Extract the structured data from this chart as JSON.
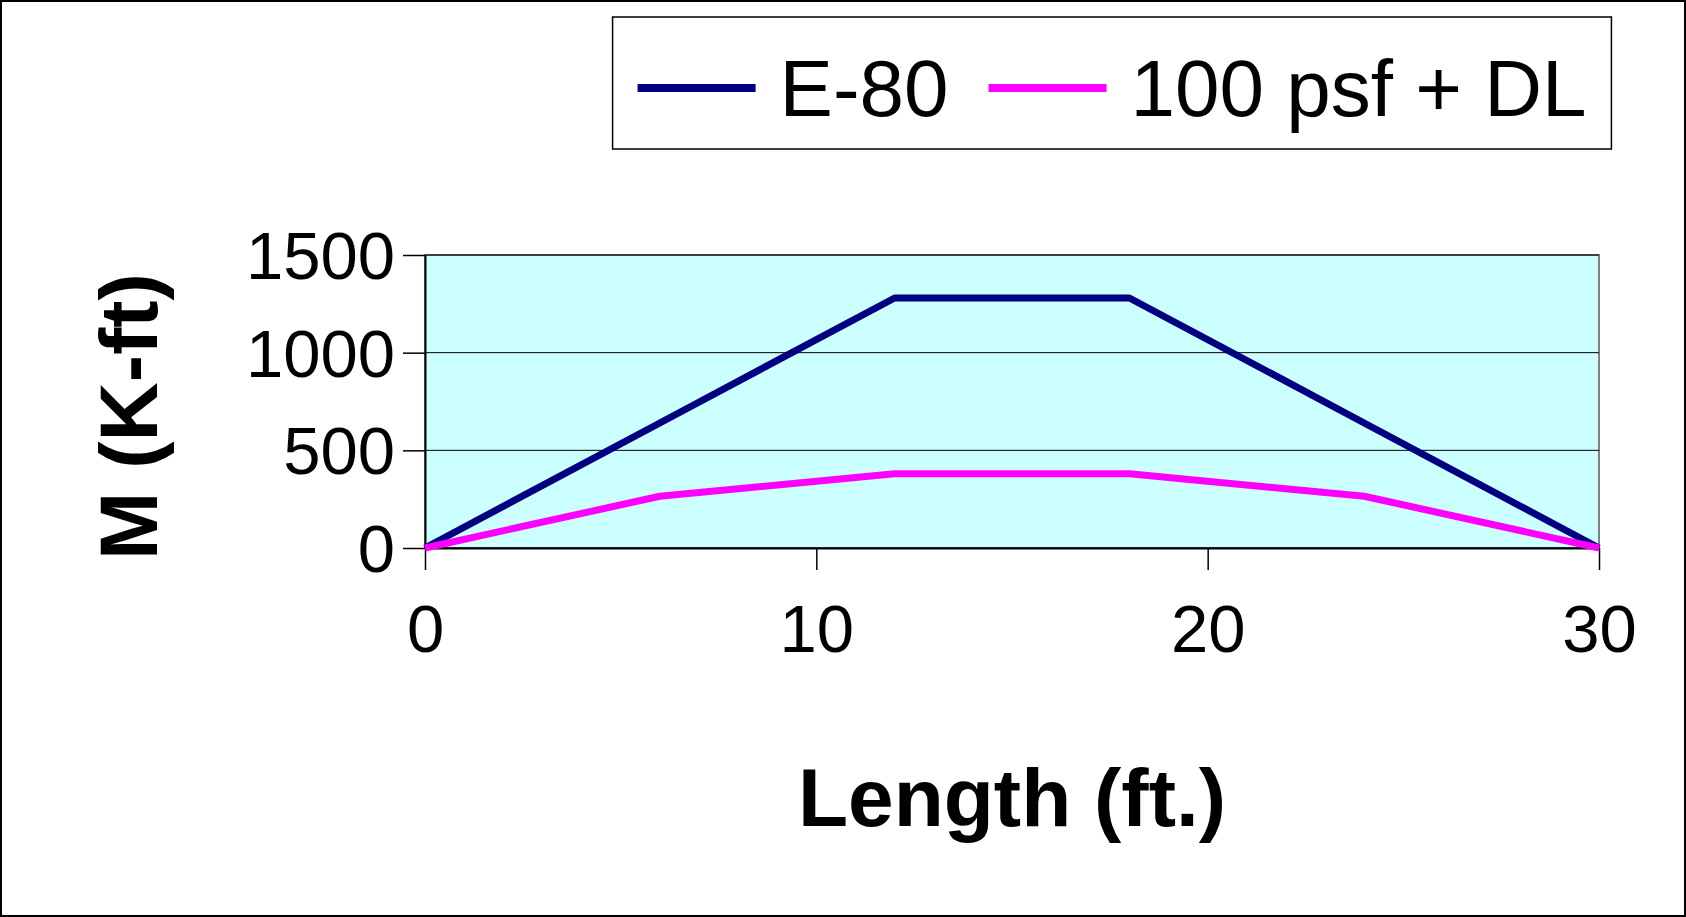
{
  "chart_data": {
    "type": "line",
    "xlabel": "Length (ft.)",
    "ylabel": "M (K-ft)",
    "xlim": [
      0,
      30
    ],
    "xticks": [
      0,
      10,
      20,
      30
    ],
    "ylim": [
      0,
      1500
    ],
    "yticks": [
      0,
      500,
      1000,
      1500
    ],
    "grid": "y",
    "legend": "top",
    "marker": "none",
    "line_style": "solid",
    "series": [
      {
        "name": "E-80",
        "color": "#000080",
        "x": [
          0,
          6,
          12,
          18,
          24,
          30
        ],
        "values": [
          0,
          640,
          1280,
          1280,
          640,
          0
        ]
      },
      {
        "name": "100 psf + DL",
        "color": "#ff00ff",
        "x": [
          0,
          6,
          12,
          18,
          24,
          30
        ],
        "values": [
          0,
          265,
          380,
          380,
          265,
          0
        ]
      }
    ]
  }
}
